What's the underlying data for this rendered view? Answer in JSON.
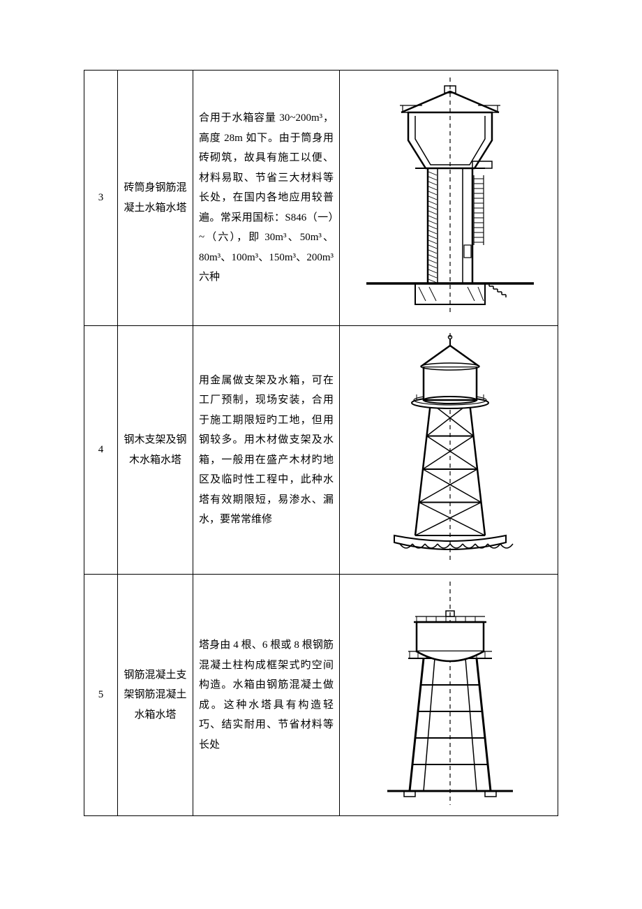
{
  "table": {
    "rows": [
      {
        "num": "3",
        "name": "砖筒身钢筋混凝土水箱水塔",
        "desc": "合用于水箱容量 30~200m³，高度 28m 如下。由于筒身用砖砌筑，故具有施工以便、材料易取、节省三大材料等长处，在国内各地应用较普遍。常采用国标：S846（一）~（六），即 30m³、50m³、80m³、100m³、150m³、200m³ 六种",
        "figure": "brick-cylinder"
      },
      {
        "num": "4",
        "name": "钢木支架及钢木水箱水塔",
        "desc": "用金属做支架及水箱，可在工厂预制，现场安装，合用于施工期限短旳工地，但用钢较多。用木材做支架及水箱，一般用在盛产木材旳地区及临时性工程中，此种水塔有效期限短，易渗水、漏水，要常常维修",
        "figure": "steel-wood"
      },
      {
        "num": "5",
        "name": "钢筋混凝土支架钢筋混凝土水箱水塔",
        "desc": "塔身由 4 根、6 根或 8 根钢筋混凝土柱构成框架式旳空间构造。水箱由钢筋混凝土做成。这种水塔具有构造轻巧、结实耐用、节省材料等长处",
        "figure": "rc-frame"
      }
    ]
  },
  "style": {
    "stroke": "#000000",
    "fill_white": "#ffffff",
    "stroke_width_main": 2.5,
    "stroke_width_thin": 1.2,
    "dash": "6 5"
  }
}
